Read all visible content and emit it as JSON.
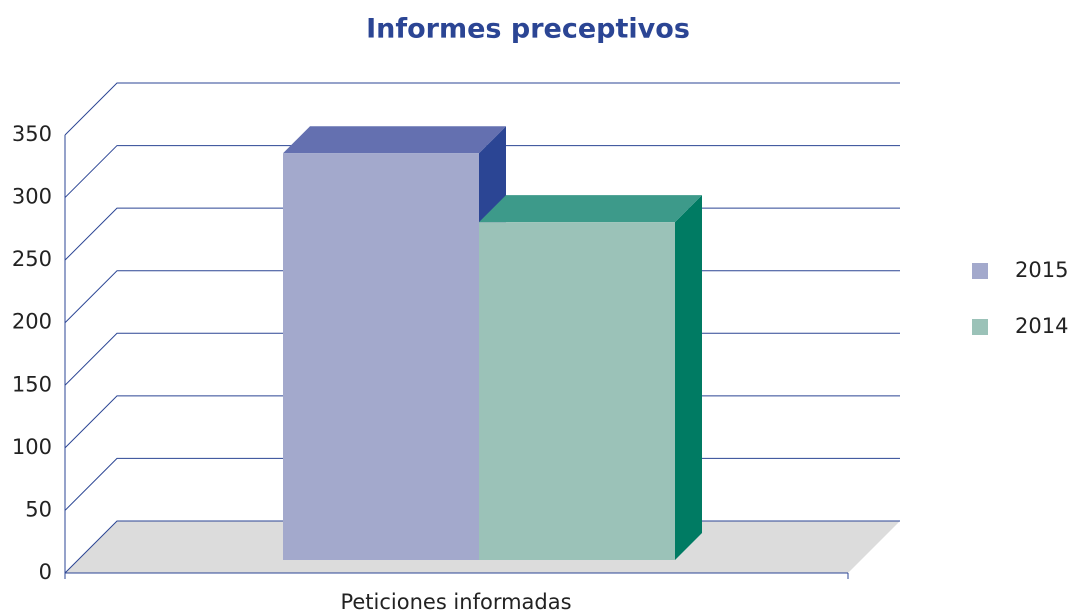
{
  "chart_data": {
    "type": "bar3d",
    "title": "Informes preceptivos",
    "categories": [
      "Peticiones informadas"
    ],
    "series": [
      {
        "name": "2015",
        "color": "#a3a9cc",
        "top_color": "#6470b0",
        "side_color": "#2b4594",
        "values": [
          325
        ]
      },
      {
        "name": "2014",
        "color": "#9bc2b8",
        "top_color": "#3d9a8a",
        "side_color": "#007b63",
        "values": [
          270
        ]
      }
    ],
    "ylim": [
      0,
      350
    ],
    "yticks": [
      0,
      50,
      100,
      150,
      200,
      250,
      300,
      350
    ],
    "grid": true,
    "legend": "right"
  }
}
